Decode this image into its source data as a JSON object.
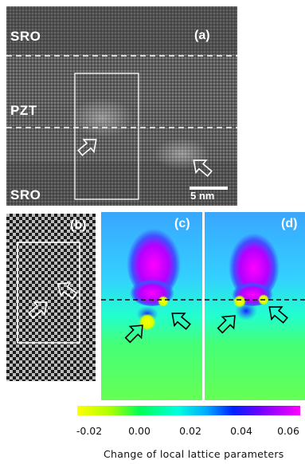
{
  "panel_a": {
    "tag": "(a)",
    "layers": {
      "top": "SRO",
      "middle": "PZT",
      "bottom": "SRO"
    },
    "scale_bar": "5 nm"
  },
  "panel_b": {
    "tag": "(b)"
  },
  "panel_c": {
    "tag": "(c)"
  },
  "panel_d": {
    "tag": "(d)"
  },
  "colorbar": {
    "ticks": [
      "-0.02",
      "0.00",
      "0.02",
      "0.04",
      "0.06"
    ],
    "range": [
      -0.02,
      0.06
    ],
    "stops": [
      "#ffff00",
      "#00ff80",
      "#00e0ff",
      "#0000ff",
      "#ff00ff"
    ],
    "caption": "Change of local lattice parameters"
  },
  "colors": {
    "background": "#ffffff",
    "annotation": "#ffffff",
    "interface_line": "#000000"
  }
}
